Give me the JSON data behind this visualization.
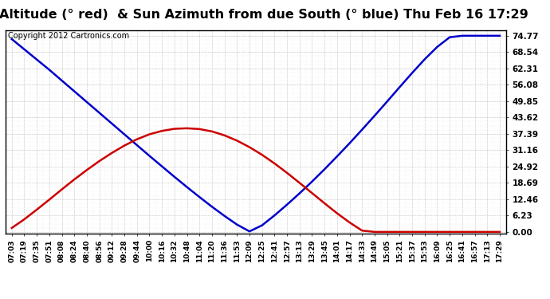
{
  "title": "Sun Altitude (° red)  & Sun Azimuth from due South (° blue) Thu Feb 16 17:29",
  "copyright": "Copyright 2012 Cartronics.com",
  "yticks": [
    0.0,
    6.23,
    12.46,
    18.69,
    24.92,
    31.16,
    37.39,
    43.62,
    49.85,
    56.08,
    62.31,
    68.54,
    74.77
  ],
  "ylim": [
    -0.5,
    77
  ],
  "time_labels": [
    "07:03",
    "07:19",
    "07:35",
    "07:51",
    "08:08",
    "08:24",
    "08:40",
    "08:56",
    "09:12",
    "09:28",
    "09:44",
    "10:00",
    "10:16",
    "10:32",
    "10:48",
    "11:04",
    "11:20",
    "11:36",
    "11:53",
    "12:09",
    "12:25",
    "12:41",
    "12:57",
    "13:13",
    "13:29",
    "13:45",
    "14:01",
    "14:17",
    "14:33",
    "14:49",
    "15:05",
    "15:21",
    "15:37",
    "15:53",
    "16:09",
    "16:25",
    "16:41",
    "16:57",
    "17:13",
    "17:29"
  ],
  "altitude_values": [
    1.5,
    4.8,
    8.5,
    12.3,
    16.2,
    20.0,
    23.6,
    27.0,
    30.1,
    32.9,
    35.3,
    37.2,
    38.5,
    39.3,
    39.5,
    39.2,
    38.3,
    36.8,
    34.8,
    32.3,
    29.4,
    26.1,
    22.5,
    18.7,
    14.8,
    10.9,
    7.1,
    3.6,
    0.5,
    0.0,
    0.0,
    0.0,
    0.0,
    0.0,
    0.0,
    0.0,
    0.0,
    0.0,
    0.0,
    0.0
  ],
  "azimuth_values": [
    73.5,
    69.6,
    65.7,
    61.8,
    57.7,
    53.6,
    49.5,
    45.4,
    41.3,
    37.2,
    33.1,
    29.0,
    25.0,
    21.0,
    17.1,
    13.3,
    9.6,
    6.1,
    2.8,
    0.2,
    2.5,
    6.3,
    10.4,
    14.7,
    19.2,
    23.9,
    28.8,
    33.8,
    39.0,
    44.3,
    49.7,
    55.2,
    60.6,
    65.8,
    70.5,
    74.2,
    74.77,
    74.77,
    74.77,
    74.77
  ],
  "altitude_color": "#cc0000",
  "azimuth_color": "#0000cc",
  "background_color": "#ffffff",
  "grid_color": "#999999",
  "title_fontsize": 11.5,
  "copyright_fontsize": 7,
  "tick_label_fontsize": 6.5,
  "ytick_label_fontsize": 7.5,
  "linewidth": 1.8
}
